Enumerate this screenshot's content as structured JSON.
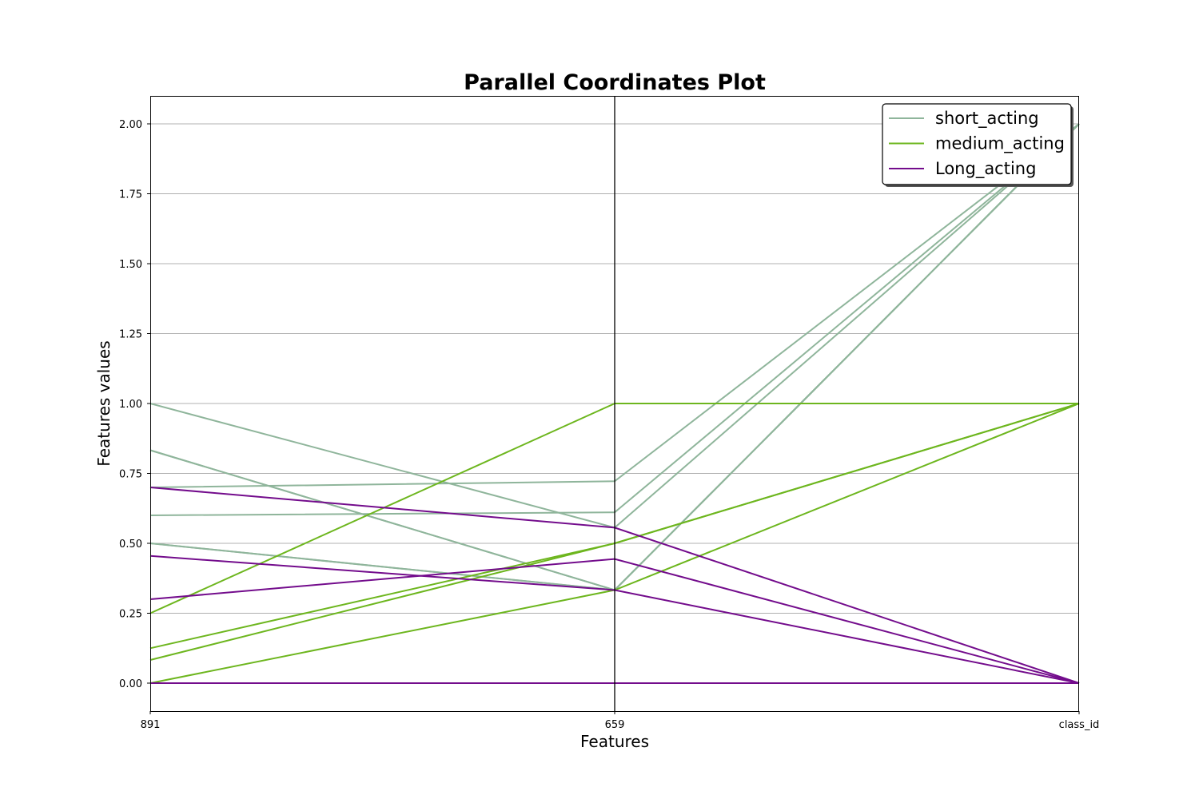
{
  "chart_data": {
    "type": "parallel_coordinates",
    "title": "Parallel Coordinates Plot",
    "xlabel": "Features",
    "ylabel": "Features values",
    "axes": [
      "891",
      "659",
      "class_id"
    ],
    "ylim": [
      -0.1,
      2.1
    ],
    "yticks": [
      "0.00",
      "0.25",
      "0.50",
      "0.75",
      "1.00",
      "1.25",
      "1.50",
      "1.75",
      "2.00"
    ],
    "grid": "horizontal",
    "legend_position": "top-right",
    "series": [
      {
        "name": "short_acting",
        "color": "#8fb59b",
        "lines": [
          [
            1.0,
            0.556,
            2.0
          ],
          [
            0.833,
            0.333,
            2.0
          ],
          [
            0.833,
            0.333,
            2.0
          ],
          [
            0.7,
            0.722,
            2.0
          ],
          [
            0.6,
            0.611,
            2.0
          ],
          [
            0.5,
            0.333,
            2.0
          ],
          [
            0.5,
            0.333,
            2.0
          ]
        ]
      },
      {
        "name": "medium_acting",
        "color": "#6db61e",
        "lines": [
          [
            0.25,
            1.0,
            1.0
          ],
          [
            0.125,
            0.5,
            1.0
          ],
          [
            0.083,
            0.5,
            1.0
          ],
          [
            0.0,
            0.333,
            1.0
          ]
        ]
      },
      {
        "name": "Long_acting",
        "color": "#730c8c",
        "lines": [
          [
            0.7,
            0.556,
            0.0
          ],
          [
            0.455,
            0.333,
            0.0
          ],
          [
            0.3,
            0.444,
            0.0
          ],
          [
            0.0,
            0.0,
            0.0
          ]
        ]
      }
    ]
  }
}
